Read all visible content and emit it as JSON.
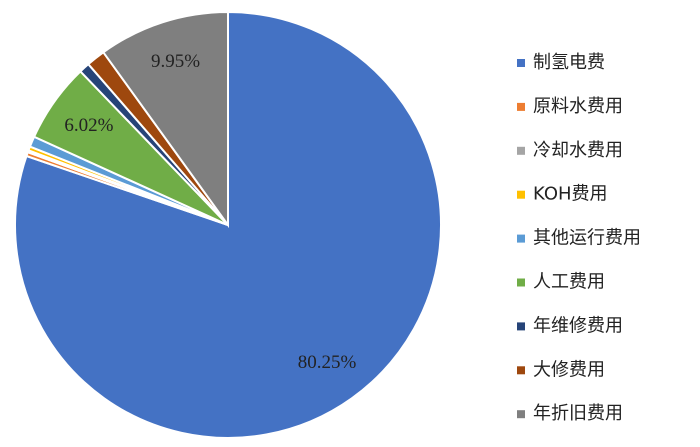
{
  "chart_data": {
    "type": "pie",
    "categories": [
      "制氢电费",
      "原料水费用",
      "冷却水费用",
      "KOH费用",
      "其他运行费用",
      "人工费用",
      "年维修费用",
      "大修费用",
      "年折旧费用"
    ],
    "values": [
      80.25,
      0.3,
      0.15,
      0.3,
      0.8,
      6.02,
      0.8,
      1.43,
      9.95
    ],
    "value_labels": [
      "80.25%",
      null,
      null,
      null,
      null,
      "6.02%",
      null,
      null,
      "9.95%"
    ],
    "colors": [
      "#4472c4",
      "#ed7d31",
      "#a5a5a5",
      "#ffc000",
      "#5b9bd5",
      "#70ad47",
      "#264478",
      "#9e480e",
      "#7f7f7f"
    ],
    "legend": "right"
  }
}
